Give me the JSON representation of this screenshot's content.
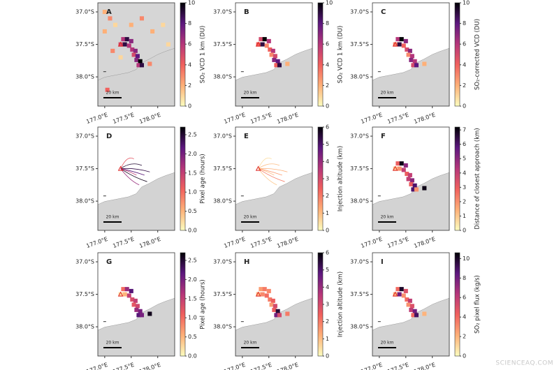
{
  "chart_data": [
    {
      "type": "map",
      "panel": "A",
      "colorbar_label": "SO₂ VCD 1 km (DU)",
      "colormap": "magma_r",
      "background": true,
      "xlim": [
        176.87,
        178.32
      ],
      "ylim": [
        36.86,
        38.45
      ],
      "xticks": [
        {
          "value": 177.0,
          "label": "177.0°E"
        },
        {
          "value": 177.5,
          "label": "177.5°E"
        },
        {
          "value": 178.0,
          "label": "178.0°E"
        }
      ],
      "yticks": [
        {
          "value": 37.0,
          "label": "37.0°S"
        },
        {
          "value": 37.5,
          "label": "37.5°S"
        },
        {
          "value": 38.0,
          "label": "38.0°S"
        }
      ],
      "clim": [
        0,
        10
      ],
      "cticks": [
        0,
        2,
        4,
        6,
        8,
        10
      ],
      "scale_label": "20 km",
      "cells": [
        [
          177.35,
          37.42,
          6
        ],
        [
          177.42,
          37.42,
          9
        ],
        [
          177.5,
          37.45,
          7
        ],
        [
          177.3,
          37.5,
          5
        ],
        [
          177.38,
          37.5,
          9
        ],
        [
          177.46,
          37.52,
          6
        ],
        [
          177.52,
          37.58,
          6
        ],
        [
          177.58,
          37.6,
          7
        ],
        [
          177.55,
          37.66,
          5
        ],
        [
          177.62,
          37.68,
          8
        ],
        [
          177.6,
          37.74,
          7
        ],
        [
          177.67,
          37.76,
          10
        ],
        [
          177.64,
          37.82,
          6
        ],
        [
          177.7,
          37.82,
          9
        ],
        [
          177.85,
          37.8,
          3
        ],
        [
          177.0,
          37.0,
          2
        ],
        [
          177.1,
          37.1,
          3
        ],
        [
          177.2,
          37.2,
          1
        ],
        [
          177.0,
          37.3,
          2
        ],
        [
          177.15,
          37.6,
          3
        ],
        [
          177.3,
          37.7,
          1
        ],
        [
          177.9,
          37.3,
          2
        ],
        [
          178.1,
          37.2,
          1
        ],
        [
          177.7,
          37.1,
          3
        ],
        [
          177.5,
          37.2,
          2
        ],
        [
          177.05,
          38.2,
          4
        ],
        [
          178.2,
          37.5,
          1
        ]
      ]
    },
    {
      "type": "map",
      "panel": "B",
      "colorbar_label": "SO₂ VCD 1 km (DU)",
      "colormap": "magma_r",
      "xlim": [
        176.87,
        178.32
      ],
      "ylim": [
        36.86,
        38.45
      ],
      "xticks": [
        {
          "value": 177.0,
          "label": "177.0°E"
        },
        {
          "value": 177.5,
          "label": "177.5°E"
        },
        {
          "value": 178.0,
          "label": "178.0°E"
        }
      ],
      "yticks": [
        {
          "value": 37.0,
          "label": "37.0°S"
        },
        {
          "value": 37.5,
          "label": "37.5°S"
        },
        {
          "value": 38.0,
          "label": "38.0°S"
        }
      ],
      "clim": [
        0,
        10
      ],
      "cticks": [
        0,
        2,
        4,
        6,
        8,
        10
      ],
      "scale_label": "20 km",
      "cells": [
        [
          177.35,
          37.42,
          5
        ],
        [
          177.42,
          37.42,
          10
        ],
        [
          177.5,
          37.45,
          6
        ],
        [
          177.3,
          37.5,
          4
        ],
        [
          177.38,
          37.5,
          9
        ],
        [
          177.46,
          37.52,
          3
        ],
        [
          177.52,
          37.58,
          4
        ],
        [
          177.58,
          37.6,
          6
        ],
        [
          177.55,
          37.66,
          3
        ],
        [
          177.62,
          37.68,
          5
        ],
        [
          177.6,
          37.74,
          7
        ],
        [
          177.67,
          37.76,
          8
        ],
        [
          177.64,
          37.82,
          4
        ],
        [
          177.7,
          37.82,
          9
        ],
        [
          177.85,
          37.8,
          2
        ]
      ]
    },
    {
      "type": "map",
      "panel": "C",
      "colorbar_label": "SO₂-corrected VCD (DU)",
      "colormap": "magma_r",
      "xlim": [
        176.87,
        178.32
      ],
      "ylim": [
        36.86,
        38.45
      ],
      "xticks": [
        {
          "value": 177.0,
          "label": "177.0°E"
        },
        {
          "value": 177.5,
          "label": "177.5°E"
        },
        {
          "value": 178.0,
          "label": "178.0°E"
        }
      ],
      "yticks": [
        {
          "value": 37.0,
          "label": "37.0°S"
        },
        {
          "value": 37.5,
          "label": "37.5°S"
        },
        {
          "value": 38.0,
          "label": "38.0°S"
        }
      ],
      "clim": [
        0,
        10
      ],
      "cticks": [
        0,
        2,
        4,
        6,
        8,
        10
      ],
      "scale_label": "20 km",
      "cells": [
        [
          177.35,
          37.42,
          6
        ],
        [
          177.42,
          37.42,
          10
        ],
        [
          177.5,
          37.45,
          7
        ],
        [
          177.3,
          37.5,
          3
        ],
        [
          177.38,
          37.5,
          9
        ],
        [
          177.46,
          37.52,
          4
        ],
        [
          177.52,
          37.58,
          5
        ],
        [
          177.58,
          37.6,
          7
        ],
        [
          177.55,
          37.66,
          3
        ],
        [
          177.62,
          37.68,
          6
        ],
        [
          177.6,
          37.74,
          7
        ],
        [
          177.67,
          37.76,
          6
        ],
        [
          177.64,
          37.82,
          5
        ],
        [
          177.7,
          37.82,
          8
        ],
        [
          177.85,
          37.8,
          2
        ]
      ]
    },
    {
      "type": "tracks",
      "panel": "D",
      "colorbar_label": "Pixel age (hours)",
      "colormap": "magma_r",
      "xlim": [
        176.87,
        178.32
      ],
      "ylim": [
        36.86,
        38.45
      ],
      "xticks": [
        {
          "value": 177.0,
          "label": "177.0°E"
        },
        {
          "value": 177.5,
          "label": "177.5°E"
        },
        {
          "value": 178.0,
          "label": "178.0°E"
        }
      ],
      "yticks": [
        {
          "value": 37.0,
          "label": "37.0°S"
        },
        {
          "value": 37.5,
          "label": "37.5°S"
        },
        {
          "value": 38.0,
          "label": "38.0°S"
        }
      ],
      "clim": [
        0,
        2.7
      ],
      "cticks": [
        {
          "value": 0,
          "label": "0.0"
        },
        0.5,
        {
          "value": 1,
          "label": "1.0"
        },
        1.5,
        {
          "value": 2,
          "label": "2.0"
        },
        2.5
      ],
      "scale_label": "20 km",
      "tracks": [
        [
          177.7,
          37.45,
          2.5
        ],
        [
          177.75,
          37.6,
          2.2
        ],
        [
          177.8,
          37.7,
          2.6
        ],
        [
          177.65,
          37.75,
          1.8
        ],
        [
          177.55,
          37.35,
          1.2
        ],
        [
          177.85,
          37.55,
          2.4
        ],
        [
          177.6,
          37.6,
          1.5
        ]
      ]
    },
    {
      "type": "tracks",
      "panel": "E",
      "colorbar_label": "Injection altitude (km)",
      "colormap": "magma_r",
      "xlim": [
        176.87,
        178.32
      ],
      "ylim": [
        36.86,
        38.45
      ],
      "xticks": [
        {
          "value": 177.0,
          "label": "177.0°E"
        },
        {
          "value": 177.5,
          "label": "177.5°E"
        },
        {
          "value": 178.0,
          "label": "178.0°E"
        }
      ],
      "yticks": [
        {
          "value": 37.0,
          "label": "37.0°S"
        },
        {
          "value": 37.5,
          "label": "37.5°S"
        },
        {
          "value": 38.0,
          "label": "38.0°S"
        }
      ],
      "clim": [
        0,
        6
      ],
      "cticks": [
        0,
        1,
        2,
        3,
        4,
        5,
        6
      ],
      "scale_label": "20 km",
      "tracks": [
        [
          177.7,
          37.45,
          1
        ],
        [
          177.75,
          37.6,
          1.5
        ],
        [
          177.8,
          37.7,
          2
        ],
        [
          177.65,
          37.75,
          0.8
        ],
        [
          177.55,
          37.35,
          0.5
        ],
        [
          177.85,
          37.55,
          1.2
        ],
        [
          177.6,
          37.6,
          1
        ]
      ]
    },
    {
      "type": "map",
      "panel": "F",
      "colorbar_label": "Distance of closest approach (km)",
      "colormap": "magma_r",
      "xlim": [
        176.87,
        178.32
      ],
      "ylim": [
        36.86,
        38.45
      ],
      "xticks": [
        {
          "value": 177.0,
          "label": "177.0°E"
        },
        {
          "value": 177.5,
          "label": "177.5°E"
        },
        {
          "value": 178.0,
          "label": "178.0°E"
        }
      ],
      "yticks": [
        {
          "value": 37.0,
          "label": "37.0°S"
        },
        {
          "value": 37.5,
          "label": "37.5°S"
        },
        {
          "value": 38.0,
          "label": "38.0°S"
        }
      ],
      "clim": [
        0,
        7.2
      ],
      "cticks": [
        0,
        1,
        2,
        3,
        4,
        5,
        6,
        7
      ],
      "scale_label": "20 km",
      "cells": [
        [
          177.35,
          37.42,
          3
        ],
        [
          177.42,
          37.42,
          7
        ],
        [
          177.5,
          37.45,
          5
        ],
        [
          177.3,
          37.5,
          1
        ],
        [
          177.38,
          37.5,
          2
        ],
        [
          177.46,
          37.52,
          4
        ],
        [
          177.52,
          37.58,
          3
        ],
        [
          177.58,
          37.6,
          4
        ],
        [
          177.55,
          37.66,
          4
        ],
        [
          177.62,
          37.68,
          5
        ],
        [
          177.6,
          37.74,
          3
        ],
        [
          177.67,
          37.76,
          6
        ],
        [
          177.64,
          37.82,
          6
        ],
        [
          177.7,
          37.82,
          2
        ],
        [
          177.85,
          37.8,
          7
        ]
      ]
    },
    {
      "type": "map",
      "panel": "G",
      "colorbar_label": "Pixel age (hours)",
      "colormap": "magma_r",
      "xlim": [
        176.87,
        178.32
      ],
      "ylim": [
        36.86,
        38.45
      ],
      "xticks": [
        {
          "value": 177.0,
          "label": "177.0°E"
        },
        {
          "value": 177.5,
          "label": "177.5°E"
        },
        {
          "value": 178.0,
          "label": "178.0°E"
        }
      ],
      "yticks": [
        {
          "value": 37.0,
          "label": "37.0°S"
        },
        {
          "value": 37.5,
          "label": "37.5°S"
        },
        {
          "value": 38.0,
          "label": "38.0°S"
        }
      ],
      "clim": [
        0,
        2.7
      ],
      "cticks": [
        {
          "value": 0,
          "label": "0.0"
        },
        0.5,
        {
          "value": 1,
          "label": "1.0"
        },
        1.5,
        {
          "value": 2,
          "label": "2.0"
        },
        2.5
      ],
      "scale_label": "20 km",
      "cells": [
        [
          177.35,
          37.42,
          1
        ],
        [
          177.42,
          37.42,
          1.8
        ],
        [
          177.5,
          37.45,
          2.2
        ],
        [
          177.3,
          37.5,
          0.2
        ],
        [
          177.38,
          37.5,
          0.5
        ],
        [
          177.46,
          37.52,
          1.5
        ],
        [
          177.52,
          37.58,
          1.3
        ],
        [
          177.58,
          37.6,
          1.5
        ],
        [
          177.55,
          37.66,
          1.2
        ],
        [
          177.62,
          37.68,
          1.4
        ],
        [
          177.6,
          37.74,
          1.8
        ],
        [
          177.67,
          37.76,
          2
        ],
        [
          177.64,
          37.82,
          2.2
        ],
        [
          177.7,
          37.82,
          2
        ],
        [
          177.85,
          37.8,
          2.6
        ]
      ]
    },
    {
      "type": "map",
      "panel": "H",
      "colorbar_label": "Injection altitude (km)",
      "colormap": "magma_r",
      "xlim": [
        176.87,
        178.32
      ],
      "ylim": [
        36.86,
        38.45
      ],
      "xticks": [
        {
          "value": 177.0,
          "label": "177.0°E"
        },
        {
          "value": 177.5,
          "label": "177.5°E"
        },
        {
          "value": 178.0,
          "label": "178.0°E"
        }
      ],
      "yticks": [
        {
          "value": 37.0,
          "label": "37.0°S"
        },
        {
          "value": 37.5,
          "label": "37.5°S"
        },
        {
          "value": 38.0,
          "label": "38.0°S"
        }
      ],
      "clim": [
        0,
        6
      ],
      "cticks": [
        0,
        1,
        2,
        3,
        4,
        5,
        6
      ],
      "scale_label": "20 km",
      "cells": [
        [
          177.35,
          37.42,
          1.5
        ],
        [
          177.42,
          37.42,
          2
        ],
        [
          177.5,
          37.45,
          1.8
        ],
        [
          177.3,
          37.5,
          1
        ],
        [
          177.38,
          37.5,
          1.8
        ],
        [
          177.46,
          37.52,
          2.2
        ],
        [
          177.52,
          37.58,
          2
        ],
        [
          177.58,
          37.6,
          2.5
        ],
        [
          177.55,
          37.66,
          1.5
        ],
        [
          177.62,
          37.68,
          3
        ],
        [
          177.6,
          37.74,
          2.5
        ],
        [
          177.67,
          37.76,
          5.5
        ],
        [
          177.64,
          37.82,
          4.5
        ],
        [
          177.7,
          37.82,
          3
        ],
        [
          177.85,
          37.8,
          2
        ]
      ]
    },
    {
      "type": "map",
      "panel": "I",
      "colorbar_label": "SO₂ pixel flux (kg/s)",
      "colormap": "magma_r",
      "xlim": [
        176.87,
        178.32
      ],
      "ylim": [
        36.86,
        38.45
      ],
      "xticks": [
        {
          "value": 177.0,
          "label": "177.0°E"
        },
        {
          "value": 177.5,
          "label": "177.5°E"
        },
        {
          "value": 178.0,
          "label": "178.0°E"
        }
      ],
      "yticks": [
        {
          "value": 37.0,
          "label": "37.0°S"
        },
        {
          "value": 37.5,
          "label": "37.5°S"
        },
        {
          "value": 38.0,
          "label": "38.0°S"
        }
      ],
      "clim": [
        0,
        10.6
      ],
      "cticks": [
        0,
        2,
        4,
        6,
        8,
        10
      ],
      "scale_label": "20 km",
      "cells": [
        [
          177.35,
          37.42,
          4
        ],
        [
          177.42,
          37.42,
          10
        ],
        [
          177.5,
          37.45,
          5
        ],
        [
          177.3,
          37.5,
          2
        ],
        [
          177.38,
          37.5,
          8
        ],
        [
          177.46,
          37.52,
          3
        ],
        [
          177.52,
          37.58,
          4
        ],
        [
          177.58,
          37.6,
          6
        ],
        [
          177.55,
          37.66,
          3
        ],
        [
          177.62,
          37.68,
          5
        ],
        [
          177.6,
          37.74,
          6
        ],
        [
          177.67,
          37.76,
          8
        ],
        [
          177.64,
          37.82,
          4
        ],
        [
          177.7,
          37.82,
          9
        ],
        [
          177.85,
          37.8,
          2
        ]
      ]
    }
  ],
  "watermark": "SCIENCEAQ.COM"
}
